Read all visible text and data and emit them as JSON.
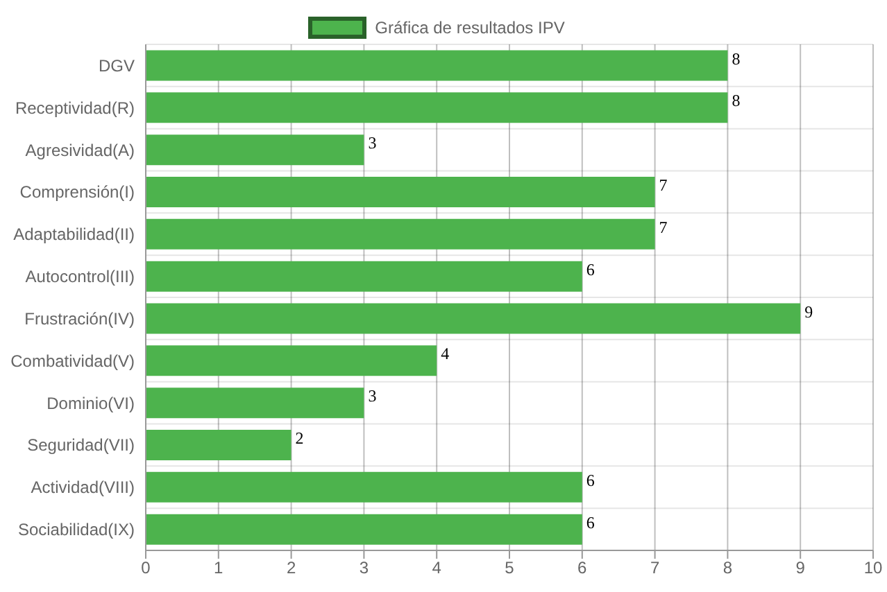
{
  "chart_data": {
    "type": "bar",
    "orientation": "horizontal",
    "categories": [
      "DGV",
      "Receptividad(R)",
      "Agresividad(A)",
      "Comprensión(I)",
      "Adaptabilidad(II)",
      "Autocontrol(III)",
      "Frustración(IV)",
      "Combatividad(V)",
      "Dominio(VI)",
      "Seguridad(VII)",
      "Actividad(VIII)",
      "Sociabilidad(IX)"
    ],
    "series": [
      {
        "name": "Gráfica de resultados IPV",
        "color": "#4db34d",
        "values": [
          8,
          8,
          3,
          7,
          7,
          6,
          9,
          4,
          3,
          2,
          6,
          6
        ]
      }
    ],
    "xlim": [
      0,
      10
    ],
    "xticks": [
      0,
      1,
      2,
      3,
      4,
      5,
      6,
      7,
      8,
      9,
      10
    ],
    "grid": true,
    "legend": "top",
    "data_labels": true
  }
}
